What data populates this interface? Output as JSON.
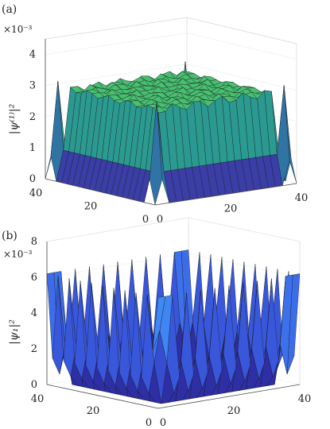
{
  "chart_data": [
    {
      "panel_label": "(a)",
      "type": "surface",
      "scale_label": "×10⁻³",
      "zlabel": "|ψ⁽¹⁾|²",
      "zlim": [
        0,
        4.5
      ],
      "z_ticks": [
        "0",
        "1",
        "2",
        "3",
        "4"
      ],
      "x_ticks": [
        "0",
        "20",
        "40"
      ],
      "y_ticks": [
        "0",
        "20",
        "40"
      ],
      "grid_size": 40,
      "description_values": {
        "outer_plateau": 2.9,
        "inner_plateau": 2.1,
        "corner_spike_max": 4.4,
        "center_spike_max": 4.5,
        "front_edge_spike": 3.0
      },
      "colormap": [
        "#3b1f8f",
        "#3a4fb3",
        "#2a8a9a",
        "#2ba58a",
        "#4cc36d",
        "#a6d33b",
        "#f2e41f"
      ]
    },
    {
      "panel_label": "(b)",
      "type": "surface",
      "scale_label": "×10⁻³",
      "zlabel": "|ψ₁|²",
      "zlim": [
        0,
        8
      ],
      "z_ticks": [
        "0",
        "2",
        "4",
        "6",
        "8"
      ],
      "x_ticks": [
        "0",
        "20",
        "40"
      ],
      "y_ticks": [
        "0",
        "20",
        "40"
      ],
      "grid_size": 40,
      "description_values": {
        "edge_spike_height": 6.2,
        "center_column_height": 8,
        "floor": 0
      },
      "colormap": [
        "#2a1f8a",
        "#3340c6",
        "#3b62e6",
        "#3f86f4",
        "#35a7e8",
        "#2fc0c8"
      ]
    }
  ]
}
